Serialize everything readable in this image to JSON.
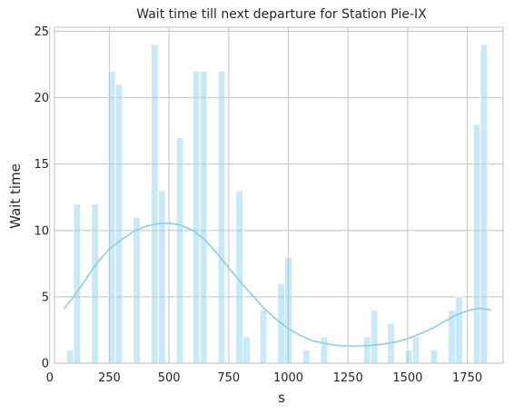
{
  "chart_data": {
    "type": "bar",
    "title": "Wait time till next departure for Station Pie-IX",
    "xlabel": "s",
    "ylabel": "Wait time",
    "xlim": [
      20,
      1900
    ],
    "ylim": [
      0,
      25.3
    ],
    "x_ticks": [
      0,
      250,
      500,
      750,
      1000,
      1250,
      1500,
      1750
    ],
    "y_ticks": [
      0,
      5,
      10,
      15,
      20,
      25
    ],
    "grid": true,
    "bar_width": 30,
    "bar_color": "#87CEEB",
    "bars": [
      {
        "x": 85,
        "value": 1
      },
      {
        "x": 115,
        "value": 12
      },
      {
        "x": 190,
        "value": 12
      },
      {
        "x": 260,
        "value": 22
      },
      {
        "x": 290,
        "value": 21
      },
      {
        "x": 365,
        "value": 11
      },
      {
        "x": 440,
        "value": 24
      },
      {
        "x": 470,
        "value": 13
      },
      {
        "x": 545,
        "value": 17
      },
      {
        "x": 615,
        "value": 22
      },
      {
        "x": 645,
        "value": 22
      },
      {
        "x": 720,
        "value": 22
      },
      {
        "x": 795,
        "value": 13
      },
      {
        "x": 825,
        "value": 2
      },
      {
        "x": 895,
        "value": 4
      },
      {
        "x": 970,
        "value": 6
      },
      {
        "x": 1000,
        "value": 8
      },
      {
        "x": 1075,
        "value": 1
      },
      {
        "x": 1150,
        "value": 2
      },
      {
        "x": 1330,
        "value": 2
      },
      {
        "x": 1360,
        "value": 4
      },
      {
        "x": 1430,
        "value": 3
      },
      {
        "x": 1505,
        "value": 1
      },
      {
        "x": 1535,
        "value": 2
      },
      {
        "x": 1610,
        "value": 1
      },
      {
        "x": 1685,
        "value": 4
      },
      {
        "x": 1715,
        "value": 5
      },
      {
        "x": 1790,
        "value": 18
      },
      {
        "x": 1820,
        "value": 24
      }
    ],
    "kde_color": "#87CEEB",
    "kde": {
      "x": [
        60,
        100,
        150,
        200,
        250,
        300,
        350,
        400,
        450,
        500,
        550,
        600,
        650,
        700,
        750,
        800,
        850,
        900,
        950,
        1000,
        1050,
        1100,
        1150,
        1200,
        1250,
        1300,
        1350,
        1400,
        1450,
        1500,
        1550,
        1600,
        1650,
        1700,
        1750,
        1800,
        1850
      ],
      "y": [
        4.1,
        5.0,
        6.3,
        7.6,
        8.6,
        9.3,
        9.9,
        10.3,
        10.5,
        10.55,
        10.4,
        10.0,
        9.3,
        8.3,
        7.2,
        6.1,
        5.1,
        4.1,
        3.3,
        2.6,
        2.1,
        1.7,
        1.5,
        1.35,
        1.3,
        1.3,
        1.35,
        1.45,
        1.6,
        1.85,
        2.2,
        2.6,
        3.1,
        3.6,
        3.95,
        4.15,
        4.0
      ]
    }
  }
}
